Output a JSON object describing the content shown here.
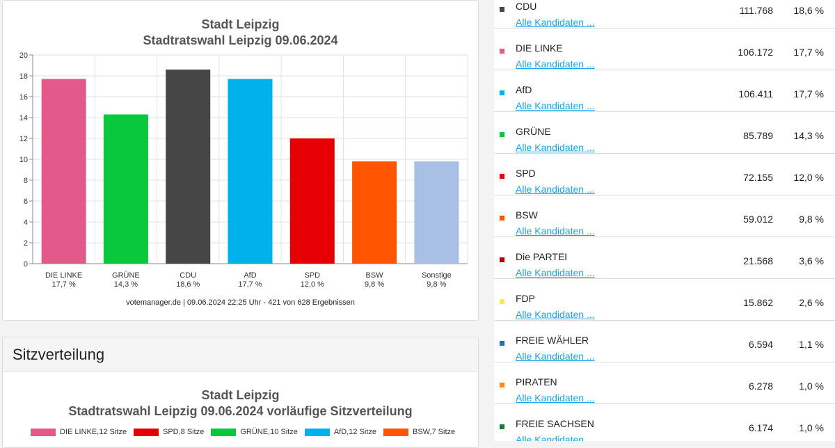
{
  "chart": {
    "title": "Stadt Leipzig",
    "subtitle": "Stadtratswahl Leipzig 09.06.2024",
    "footer": "votemanager.de | 09.06.2024 22:25 Uhr - 421 von 628 Ergebnissen"
  },
  "chart_data": {
    "type": "bar",
    "title": "Stadt Leipzig",
    "subtitle": "Stadtratswahl Leipzig 09.06.2024",
    "categories": [
      "DIE LINKE",
      "GRÜNE",
      "CDU",
      "AfD",
      "SPD",
      "BSW",
      "Sonstige"
    ],
    "value_labels": [
      "17,7 %",
      "14,3 %",
      "18,6 %",
      "17,7 %",
      "12,0 %",
      "9,8 %",
      "9,8 %"
    ],
    "values": [
      17.7,
      14.3,
      18.6,
      17.7,
      12.0,
      9.8,
      9.8
    ],
    "colors": [
      "#e3598a",
      "#0ac83c",
      "#464646",
      "#00b1ec",
      "#e60005",
      "#ff5500",
      "#a9bfe3"
    ],
    "ylim": [
      0,
      20
    ],
    "yticks": [
      "0",
      "2",
      "4",
      "6",
      "8",
      "10",
      "12",
      "14",
      "16",
      "18",
      "20"
    ],
    "grid": true,
    "xlabel": "",
    "ylabel": ""
  },
  "seats": {
    "header": "Sitzverteilung",
    "title": "Stadt Leipzig",
    "subtitle": "Stadtratswahl Leipzig 09.06.2024 vorläufige Sitzverteilung",
    "legend": [
      {
        "label": "DIE LINKE,12 Sitze",
        "color": "#e3598a"
      },
      {
        "label": "SPD,8 Sitze",
        "color": "#e60005"
      },
      {
        "label": "GRÜNE,10 Sitze",
        "color": "#0ac83c"
      },
      {
        "label": "AfD,12 Sitze",
        "color": "#00b1ec"
      },
      {
        "label": "BSW,7 Sitze",
        "color": "#ff5500"
      }
    ]
  },
  "results": {
    "link_label": "Alle Kandidaten ...",
    "rows": [
      {
        "name": "CDU",
        "votes": "111.768",
        "pct": "18,6 %",
        "color": "#464646"
      },
      {
        "name": "DIE LINKE",
        "votes": "106.172",
        "pct": "17,7 %",
        "color": "#e3598a"
      },
      {
        "name": "AfD",
        "votes": "106.411",
        "pct": "17,7 %",
        "color": "#00b1ec"
      },
      {
        "name": "GRÜNE",
        "votes": "85.789",
        "pct": "14,3 %",
        "color": "#0ac83c"
      },
      {
        "name": "SPD",
        "votes": "72.155",
        "pct": "12,0 %",
        "color": "#e60005"
      },
      {
        "name": "BSW",
        "votes": "59.012",
        "pct": "9,8 %",
        "color": "#ff5500"
      },
      {
        "name": "Die PARTEI",
        "votes": "21.568",
        "pct": "3,6 %",
        "color": "#b30000"
      },
      {
        "name": "FDP",
        "votes": "15.862",
        "pct": "2,6 %",
        "color": "#ffe94d"
      },
      {
        "name": "FREIE WÄHLER",
        "votes": "6.594",
        "pct": "1,1 %",
        "color": "#1a7a9c"
      },
      {
        "name": "PIRATEN",
        "votes": "6.278",
        "pct": "1,0 %",
        "color": "#ff8c1a"
      },
      {
        "name": "FREIE SACHSEN",
        "votes": "6.174",
        "pct": "1,0 %",
        "color": "#1a7a3c"
      }
    ]
  }
}
